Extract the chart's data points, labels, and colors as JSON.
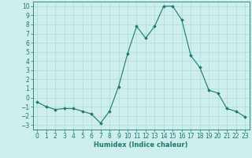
{
  "x": [
    0,
    1,
    2,
    3,
    4,
    5,
    6,
    7,
    8,
    9,
    10,
    11,
    12,
    13,
    14,
    15,
    16,
    17,
    18,
    19,
    20,
    21,
    22,
    23
  ],
  "y": [
    -0.5,
    -1,
    -1.3,
    -1.2,
    -1.2,
    -1.5,
    -1.8,
    -2.8,
    -1.5,
    1.2,
    4.8,
    7.8,
    6.5,
    7.8,
    10.0,
    10.0,
    8.5,
    4.6,
    3.3,
    0.8,
    0.5,
    -1.2,
    -1.5,
    -2.1
  ],
  "line_color": "#1a7a6e",
  "marker": "D",
  "marker_size": 1.8,
  "bg_color": "#ceeeed",
  "grid_color": "#b0dedd",
  "xlabel": "Humidex (Indice chaleur)",
  "xlabel_fontsize": 6.0,
  "tick_fontsize": 5.5,
  "ylim": [
    -3.5,
    10.5
  ],
  "xlim": [
    -0.5,
    23.5
  ],
  "yticks": [
    -3,
    -2,
    -1,
    0,
    1,
    2,
    3,
    4,
    5,
    6,
    7,
    8,
    9,
    10
  ],
  "xticks": [
    0,
    1,
    2,
    3,
    4,
    5,
    6,
    7,
    8,
    9,
    10,
    11,
    12,
    13,
    14,
    15,
    16,
    17,
    18,
    19,
    20,
    21,
    22,
    23
  ]
}
